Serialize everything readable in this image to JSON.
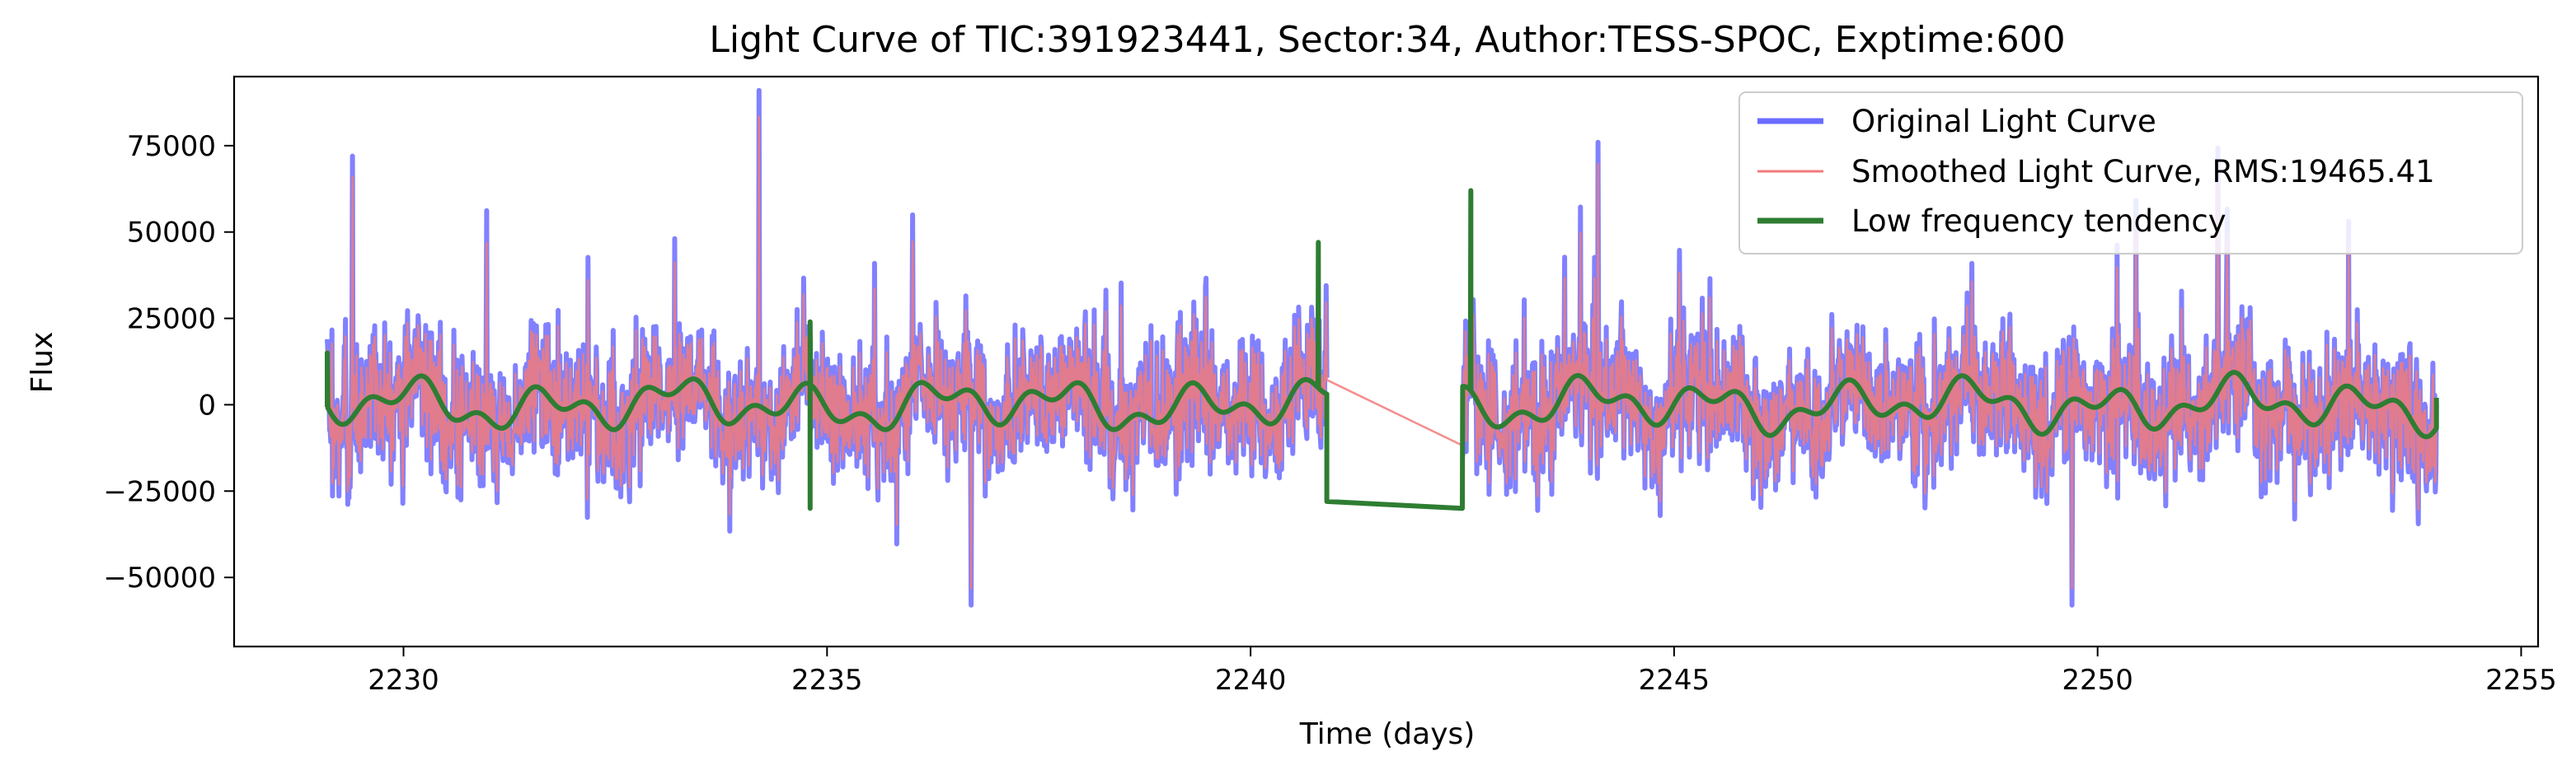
{
  "chart_data": {
    "type": "line",
    "title": "Light Curve of TIC:391923441, Sector:34, Author:TESS-SPOC, Exptime:600",
    "xlabel": "Time (days)",
    "ylabel": "Flux",
    "xlim": [
      2228.0,
      2255.2
    ],
    "ylim": [
      -70000,
      95000
    ],
    "xticks": [
      2230,
      2235,
      2240,
      2245,
      2250,
      2255
    ],
    "yticks": [
      -50000,
      -25000,
      0,
      25000,
      50000,
      75000
    ],
    "xtick_labels": [
      "2230",
      "2235",
      "2240",
      "2245",
      "2250",
      "2255"
    ],
    "ytick_labels": [
      "−50000",
      "−25000",
      "0",
      "25000",
      "50000",
      "75000"
    ],
    "grid": false,
    "legend_position": "top-right",
    "data_gap": [
      2240.9,
      2242.5
    ],
    "rms": 19465.41,
    "series": [
      {
        "name": "Original Light Curve",
        "color": "#6b6bff",
        "style": "thick-line",
        "x_range": [
          2229.1,
          2254.0
        ],
        "approx_range": [
          -58000,
          91000
        ],
        "notable_points": [
          {
            "x": 2229.4,
            "y": 72000
          },
          {
            "x": 2234.2,
            "y": 91000
          },
          {
            "x": 2236.7,
            "y": -58000
          },
          {
            "x": 2244.1,
            "y": 76000
          },
          {
            "x": 2249.7,
            "y": -58000
          }
        ]
      },
      {
        "name": "Smoothed Light Curve, RMS:19465.41",
        "color": "#f27a7a",
        "style": "thin-line",
        "x_range": [
          2229.1,
          2254.0
        ],
        "approx_range": [
          -62000,
          85000
        ]
      },
      {
        "name": "Low frequency tendency",
        "color": "#2e7d32",
        "style": "thick-line",
        "x_range": [
          2229.1,
          2254.0
        ],
        "approx_range": [
          -30000,
          62000
        ],
        "notable_points": [
          {
            "x": 2229.1,
            "y": 15000
          },
          {
            "x": 2234.8,
            "y": -30000
          },
          {
            "x": 2234.8,
            "y": 24000
          },
          {
            "x": 2240.8,
            "y": 47000
          },
          {
            "x": 2240.9,
            "y": -28000
          },
          {
            "x": 2242.5,
            "y": -30000
          },
          {
            "x": 2242.6,
            "y": 62000
          },
          {
            "x": 2254.0,
            "y": 2000
          }
        ]
      }
    ]
  }
}
